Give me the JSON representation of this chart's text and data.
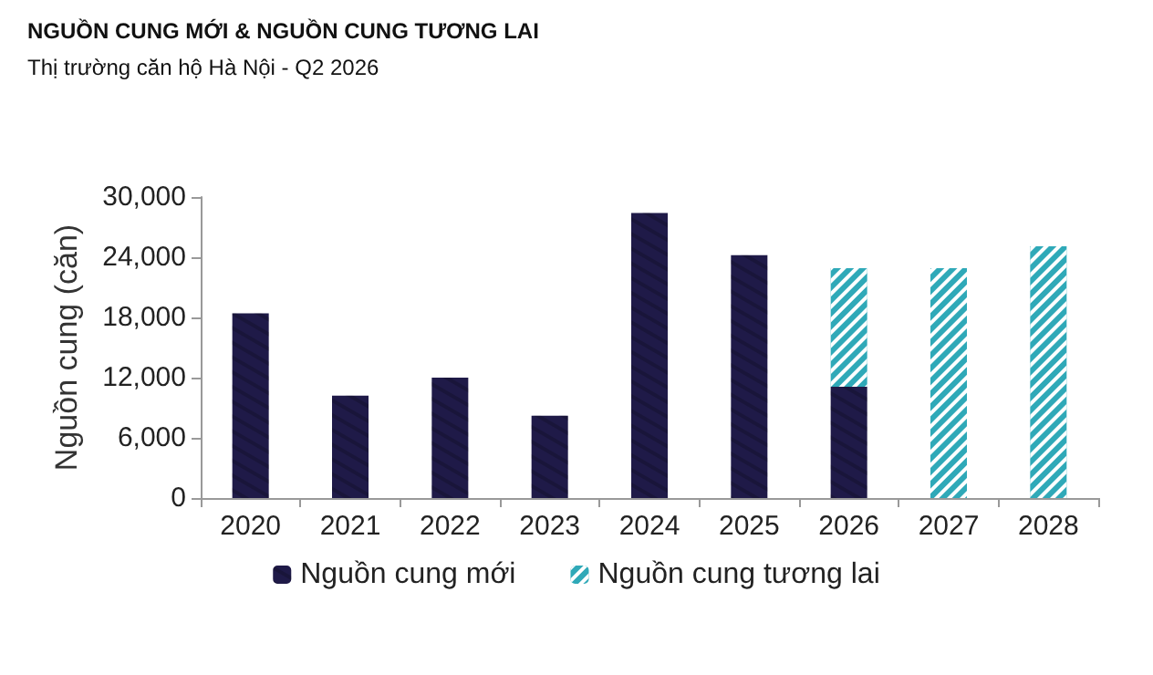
{
  "chart_data": {
    "type": "bar",
    "title": "NGUỒN CUNG MỚI & NGUỒN CUNG TƯƠNG LAI",
    "subtitle": "Thị trường căn hộ Hà Nội - Q2 2026",
    "ylabel": "Nguồn cung (căn)",
    "categories": [
      "2020",
      "2021",
      "2022",
      "2023",
      "2024",
      "2025",
      "2026",
      "2027",
      "2028"
    ],
    "stacked": true,
    "series": [
      {
        "name": "Nguồn cung mới",
        "color": "#1f1a48",
        "values": [
          18400,
          10200,
          12000,
          8200,
          28400,
          24200,
          11100,
          null,
          null
        ]
      },
      {
        "name": "Nguồn cung tương lai",
        "color": "#2fa9b8",
        "values": [
          null,
          null,
          null,
          null,
          null,
          null,
          11800,
          22900,
          25100
        ]
      }
    ],
    "ylim": [
      0,
      30000
    ],
    "yticks": [
      {
        "value": 0,
        "label": "0"
      },
      {
        "value": 6000,
        "label": "6,000"
      },
      {
        "value": 12000,
        "label": "12,000"
      },
      {
        "value": 18000,
        "label": "18,000"
      },
      {
        "value": 24000,
        "label": "24,000"
      },
      {
        "value": 30000,
        "label": "30,000"
      }
    ],
    "grid": false,
    "legend": "bottom"
  }
}
